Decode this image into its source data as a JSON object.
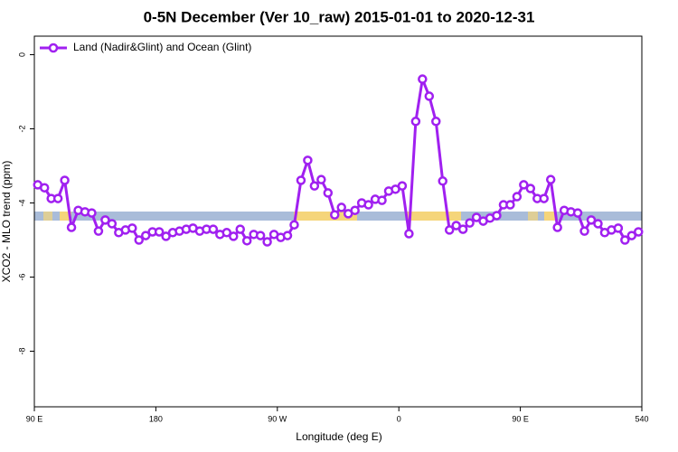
{
  "chart_data": {
    "type": "line",
    "title": "0-5N December (Ver 10_raw)   2015-01-01 to 2020-12-31",
    "x_label": "Longitude (deg E)",
    "y_label": "XCO2 - MLO trend (ppm)",
    "legend": "top-left",
    "xlim": [
      90,
      540
    ],
    "ylim": [
      -9.5,
      0.5
    ],
    "xticks": [
      {
        "value": 90,
        "label": "90 E"
      },
      180,
      {
        "value": 270,
        "label": "90 W"
      },
      {
        "value": 360,
        "label": "0"
      },
      {
        "value": 450,
        "label": "90 E"
      },
      540
    ],
    "yticks": [
      0,
      -2,
      -4,
      -6,
      -8
    ],
    "x": [
      92.5,
      97.5,
      102.5,
      107.5,
      112.5,
      117.5,
      122.5,
      127.5,
      132.5,
      137.5,
      142.5,
      147.5,
      152.5,
      157.5,
      162.5,
      167.5,
      172.5,
      177.5,
      182.5,
      187.5,
      192.5,
      197.5,
      202.5,
      207.5,
      212.5,
      217.5,
      222.5,
      227.5,
      232.5,
      237.5,
      242.5,
      247.5,
      252.5,
      257.5,
      262.5,
      267.5,
      272.5,
      277.5,
      282.5,
      287.5,
      292.5,
      297.5,
      302.5,
      307.5,
      312.5,
      317.5,
      322.5,
      327.5,
      332.5,
      337.5,
      342.5,
      347.5,
      352.5,
      357.5,
      362.5,
      367.5,
      372.5,
      377.5,
      382.5,
      387.5,
      392.5,
      397.5,
      402.5,
      407.5,
      412.5,
      417.5,
      422.5,
      427.5,
      432.5,
      437.5,
      442.5,
      447.5,
      452.5,
      457.5,
      462.5,
      467.5,
      472.5,
      477.5,
      482.5,
      487.5,
      492.5,
      497.5,
      502.5,
      507.5,
      512.5,
      517.5,
      522.5,
      527.5,
      532.5,
      537.5
    ],
    "series": [
      {
        "name": "Land (Nadir&Glint) and Ocean (Glint)",
        "color": "#a020f0",
        "values": [
          -3.51,
          -3.59,
          -3.88,
          -3.88,
          -3.39,
          -4.66,
          -4.2,
          -4.24,
          -4.27,
          -4.76,
          -4.46,
          -4.56,
          -4.8,
          -4.73,
          -4.68,
          -5.0,
          -4.88,
          -4.78,
          -4.78,
          -4.9,
          -4.8,
          -4.76,
          -4.71,
          -4.68,
          -4.76,
          -4.71,
          -4.71,
          -4.85,
          -4.8,
          -4.9,
          -4.71,
          -5.02,
          -4.85,
          -4.88,
          -5.05,
          -4.85,
          -4.93,
          -4.88,
          -4.59,
          -3.39,
          -2.85,
          -3.54,
          -3.37,
          -3.73,
          -4.32,
          -4.12,
          -4.29,
          -4.2,
          -4.0,
          -4.05,
          -3.9,
          -3.93,
          -3.68,
          -3.63,
          -3.54,
          -4.83,
          -1.8,
          -0.66,
          -1.12,
          -1.8,
          -3.41,
          -4.73,
          -4.61,
          -4.71,
          -4.54,
          -4.39,
          -4.49,
          -4.41,
          -4.34,
          -4.05,
          -4.05,
          -3.83,
          -3.51,
          -3.61,
          -3.88,
          -3.88,
          -3.37,
          -4.66,
          -4.2,
          -4.24,
          -4.27,
          -4.76,
          -4.46,
          -4.56,
          -4.8,
          -4.73,
          -4.68,
          -5.0,
          -4.88,
          -4.78
        ]
      }
    ]
  }
}
